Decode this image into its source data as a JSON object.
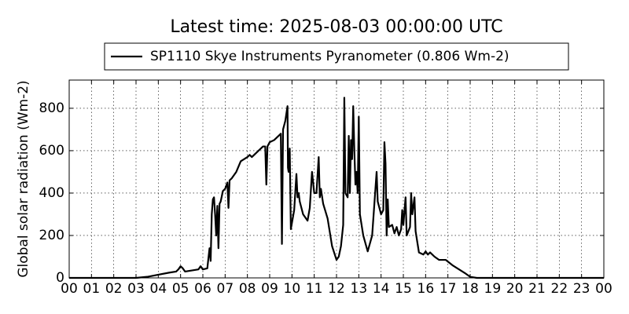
{
  "chart_data": {
    "type": "line",
    "title": "Latest time: 2025-08-03 00:00:00 UTC",
    "y_label": "Global solar radiation (Wm-2)",
    "legend": "upper center",
    "grid": true,
    "x": [
      0,
      3,
      3.5,
      4,
      4.5,
      4.8,
      4.9,
      5.0,
      5.1,
      5.2,
      5.5,
      5.8,
      5.9,
      6.0,
      6.2,
      6.3,
      6.35,
      6.4,
      6.45,
      6.5,
      6.55,
      6.6,
      6.65,
      6.7,
      6.75,
      6.8,
      6.9,
      7.0,
      7.1,
      7.15,
      7.2,
      7.3,
      7.5,
      7.7,
      8.0,
      8.1,
      8.2,
      8.5,
      8.7,
      8.8,
      8.85,
      8.9,
      9.0,
      9.2,
      9.4,
      9.5,
      9.55,
      9.6,
      9.7,
      9.8,
      9.82,
      9.85,
      9.9,
      9.95,
      10.0,
      10.1,
      10.2,
      10.25,
      10.3,
      10.35,
      10.5,
      10.7,
      10.8,
      10.9,
      11.0,
      11.1,
      11.2,
      11.25,
      11.3,
      11.4,
      11.6,
      11.8,
      12.0,
      12.1,
      12.2,
      12.3,
      12.35,
      12.4,
      12.5,
      12.55,
      12.6,
      12.65,
      12.7,
      12.75,
      12.8,
      12.85,
      12.9,
      12.95,
      13.0,
      13.05,
      13.2,
      13.4,
      13.6,
      13.8,
      13.85,
      14.0,
      14.1,
      14.15,
      14.2,
      14.25,
      14.3,
      14.35,
      14.5,
      14.6,
      14.7,
      14.8,
      14.9,
      14.95,
      15.0,
      15.1,
      15.15,
      15.3,
      15.35,
      15.4,
      15.5,
      15.55,
      15.7,
      15.9,
      16.0,
      16.1,
      16.2,
      16.4,
      16.6,
      16.9,
      17.2,
      17.5,
      17.8,
      18.0,
      18.3,
      24
    ],
    "series": [
      {
        "name": "SP1110 Skye Instruments Pyranometer (0.806 Wm-2)",
        "color": "#000000",
        "values": [
          0,
          0,
          5,
          15,
          25,
          30,
          40,
          55,
          45,
          30,
          35,
          40,
          55,
          40,
          45,
          140,
          80,
          300,
          370,
          380,
          300,
          200,
          340,
          140,
          350,
          360,
          410,
          420,
          450,
          330,
          460,
          470,
          500,
          550,
          570,
          580,
          570,
          600,
          620,
          620,
          440,
          620,
          640,
          650,
          670,
          680,
          160,
          700,
          740,
          810,
          520,
          500,
          610,
          230,
          260,
          320,
          490,
          380,
          400,
          360,
          300,
          270,
          330,
          500,
          400,
          400,
          570,
          380,
          420,
          350,
          280,
          150,
          85,
          100,
          150,
          250,
          850,
          400,
          380,
          670,
          400,
          650,
          560,
          810,
          600,
          440,
          500,
          400,
          760,
          300,
          200,
          125,
          200,
          500,
          360,
          300,
          320,
          640,
          540,
          200,
          370,
          240,
          250,
          210,
          240,
          200,
          230,
          320,
          250,
          380,
          200,
          240,
          400,
          300,
          380,
          220,
          120,
          110,
          125,
          110,
          120,
          100,
          85,
          85,
          60,
          40,
          20,
          5,
          0,
          0
        ]
      }
    ],
    "xlim": [
      0,
      24
    ],
    "xticks": [
      {
        "value": 0,
        "label": "00"
      },
      {
        "value": 1,
        "label": "01"
      },
      {
        "value": 2,
        "label": "02"
      },
      {
        "value": 3,
        "label": "03"
      },
      {
        "value": 4,
        "label": "04"
      },
      {
        "value": 5,
        "label": "05"
      },
      {
        "value": 6,
        "label": "06"
      },
      {
        "value": 7,
        "label": "07"
      },
      {
        "value": 8,
        "label": "08"
      },
      {
        "value": 9,
        "label": "09"
      },
      {
        "value": 10,
        "label": "10"
      },
      {
        "value": 11,
        "label": "11"
      },
      {
        "value": 12,
        "label": "12"
      },
      {
        "value": 13,
        "label": "13"
      },
      {
        "value": 14,
        "label": "14"
      },
      {
        "value": 15,
        "label": "15"
      },
      {
        "value": 16,
        "label": "16"
      },
      {
        "value": 17,
        "label": "17"
      },
      {
        "value": 18,
        "label": "18"
      },
      {
        "value": 19,
        "label": "19"
      },
      {
        "value": 20,
        "label": "20"
      },
      {
        "value": 21,
        "label": "21"
      },
      {
        "value": 22,
        "label": "22"
      },
      {
        "value": 23,
        "label": "23"
      },
      {
        "value": 24,
        "label": "00"
      }
    ],
    "ylim": [
      0,
      933
    ],
    "yticks": [
      0,
      200,
      400,
      600,
      800
    ]
  }
}
